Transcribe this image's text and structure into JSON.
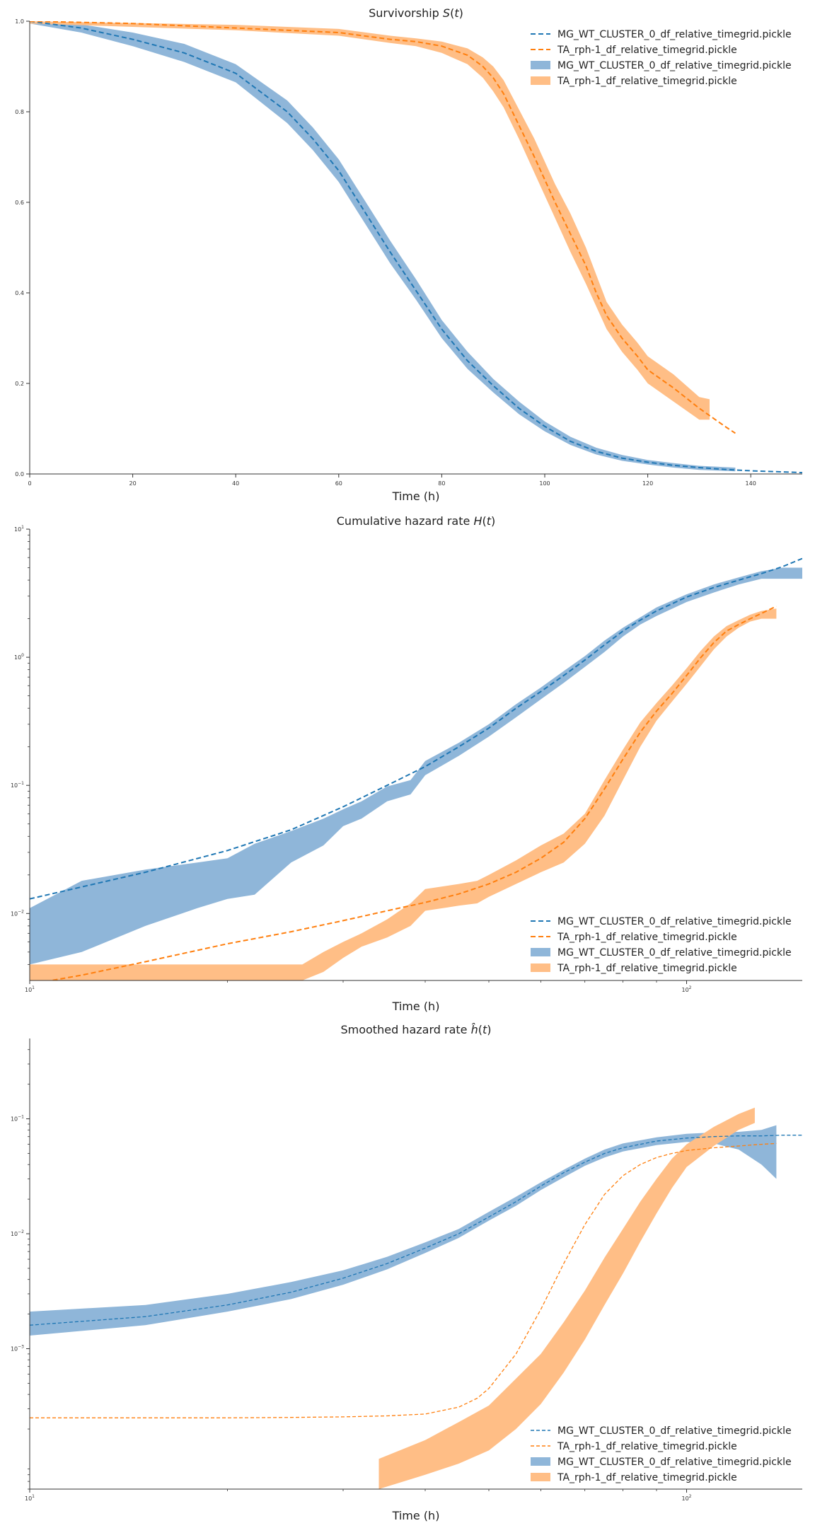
{
  "colors": {
    "blue": "#1f77b4",
    "orange": "#ff7f0e",
    "blue_fill": "#8fb6d9",
    "orange_fill": "#ffbe86"
  },
  "chart_data": [
    {
      "type": "line",
      "title": "Survivorship S(t)",
      "title_parts": [
        "Survivorship ",
        "S",
        "(",
        "t",
        ")"
      ],
      "xlabel": "Time (h)",
      "ylabel": "",
      "xlim": [
        0,
        150
      ],
      "ylim": [
        0,
        1
      ],
      "xscale": "linear",
      "yscale": "linear",
      "xticks": [
        0,
        20,
        40,
        60,
        80,
        100,
        120,
        140
      ],
      "xtick_labels": [
        "0",
        "20",
        "40",
        "60",
        "80",
        "100",
        "120",
        "140"
      ],
      "yticks": [
        0,
        0.2,
        0.4,
        0.6,
        0.8,
        1.0
      ],
      "ytick_labels": [
        "0.0",
        "0.2",
        "0.4",
        "0.6",
        "0.8",
        "1.0"
      ],
      "legend_position": "top-right",
      "legend": [
        {
          "label": "MG_WT_CLUSTER_0_df_relative_timegrid.pickle",
          "kind": "line",
          "color": "blue"
        },
        {
          "label": "TA_rph-1_df_relative_timegrid.pickle",
          "kind": "line",
          "color": "orange"
        },
        {
          "label": "MG_WT_CLUSTER_0_df_relative_timegrid.pickle",
          "kind": "band",
          "color": "blue"
        },
        {
          "label": "TA_rph-1_df_relative_timegrid.pickle",
          "kind": "band",
          "color": "orange"
        }
      ],
      "series": [
        {
          "color": "blue",
          "style": "dashed",
          "x": [
            0,
            10,
            20,
            30,
            40,
            50,
            55,
            60,
            65,
            70,
            75,
            80,
            85,
            90,
            95,
            100,
            105,
            110,
            115,
            120,
            125,
            130,
            135,
            140,
            145,
            150
          ],
          "y": [
            1.0,
            0.985,
            0.96,
            0.93,
            0.885,
            0.8,
            0.74,
            0.67,
            0.58,
            0.49,
            0.405,
            0.32,
            0.25,
            0.195,
            0.145,
            0.105,
            0.072,
            0.05,
            0.035,
            0.026,
            0.019,
            0.014,
            0.01,
            0.007,
            0.005,
            0.003
          ]
        },
        {
          "color": "orange",
          "style": "dashed",
          "x": [
            0,
            20,
            40,
            50,
            60,
            70,
            75,
            80,
            85,
            88,
            90,
            92,
            95,
            98,
            100,
            102,
            105,
            108,
            110,
            112,
            115,
            118,
            120,
            125,
            130,
            135,
            137
          ],
          "y": [
            1.0,
            0.995,
            0.985,
            0.98,
            0.975,
            0.96,
            0.955,
            0.945,
            0.925,
            0.9,
            0.875,
            0.84,
            0.77,
            0.7,
            0.65,
            0.6,
            0.53,
            0.46,
            0.4,
            0.35,
            0.3,
            0.26,
            0.23,
            0.19,
            0.145,
            0.105,
            0.09
          ]
        }
      ],
      "bands": [
        {
          "color": "blue",
          "x": [
            0,
            10,
            20,
            30,
            40,
            50,
            55,
            60,
            65,
            70,
            75,
            80,
            85,
            90,
            95,
            100,
            105,
            110,
            115,
            120,
            125,
            130,
            137
          ],
          "lower": [
            0.995,
            0.975,
            0.945,
            0.91,
            0.865,
            0.775,
            0.715,
            0.645,
            0.555,
            0.465,
            0.385,
            0.3,
            0.232,
            0.18,
            0.132,
            0.094,
            0.064,
            0.043,
            0.029,
            0.021,
            0.014,
            0.009,
            0.006
          ],
          "upper": [
            1.0,
            0.993,
            0.975,
            0.95,
            0.905,
            0.825,
            0.765,
            0.695,
            0.605,
            0.515,
            0.43,
            0.34,
            0.27,
            0.21,
            0.16,
            0.116,
            0.082,
            0.058,
            0.042,
            0.031,
            0.024,
            0.018,
            0.014
          ]
        },
        {
          "color": "orange",
          "x": [
            0,
            40,
            60,
            70,
            75,
            80,
            85,
            88,
            90,
            92,
            95,
            98,
            100,
            102,
            105,
            108,
            110,
            112,
            115,
            118,
            120,
            125,
            130,
            132
          ],
          "lower": [
            0.995,
            0.98,
            0.968,
            0.952,
            0.945,
            0.93,
            0.905,
            0.875,
            0.845,
            0.81,
            0.74,
            0.665,
            0.615,
            0.565,
            0.49,
            0.42,
            0.37,
            0.32,
            0.27,
            0.23,
            0.2,
            0.16,
            0.12,
            0.12
          ],
          "upper": [
            1.0,
            0.992,
            0.983,
            0.968,
            0.962,
            0.955,
            0.94,
            0.92,
            0.9,
            0.87,
            0.805,
            0.74,
            0.69,
            0.64,
            0.575,
            0.5,
            0.44,
            0.38,
            0.33,
            0.29,
            0.26,
            0.22,
            0.17,
            0.165
          ]
        }
      ]
    },
    {
      "type": "line",
      "title": "Cumulative hazard rate H(t)",
      "title_parts": [
        "Cumulative hazard rate ",
        "H",
        "(",
        "t",
        ")"
      ],
      "xlabel": "Time (h)",
      "ylabel": "",
      "xlim": [
        10,
        150
      ],
      "ylim": [
        0.003,
        10
      ],
      "xscale": "log",
      "yscale": "log",
      "xticks": [
        10,
        100
      ],
      "xtick_labels": [
        [
          "10",
          "1"
        ],
        [
          "10",
          "2"
        ]
      ],
      "yticks": [
        0.01,
        0.1,
        1,
        10
      ],
      "ytick_labels": [
        [
          "10",
          "−2"
        ],
        [
          "10",
          "−1"
        ],
        [
          "10",
          "0"
        ],
        [
          "10",
          "1"
        ]
      ],
      "legend_position": "lower-right",
      "legend": [
        {
          "label": "MG_WT_CLUSTER_0_df_relative_timegrid.pickle",
          "kind": "line",
          "color": "blue"
        },
        {
          "label": "TA_rph-1_df_relative_timegrid.pickle",
          "kind": "line",
          "color": "orange"
        },
        {
          "label": "MG_WT_CLUSTER_0_df_relative_timegrid.pickle",
          "kind": "band",
          "color": "blue"
        },
        {
          "label": "TA_rph-1_df_relative_timegrid.pickle",
          "kind": "band",
          "color": "orange"
        }
      ],
      "series": [
        {
          "color": "blue",
          "style": "dashed",
          "x": [
            10,
            15,
            20,
            25,
            30,
            35,
            40,
            45,
            50,
            55,
            60,
            65,
            70,
            75,
            80,
            85,
            90,
            100,
            110,
            120,
            130,
            140,
            150
          ],
          "y": [
            0.013,
            0.021,
            0.031,
            0.045,
            0.068,
            0.1,
            0.14,
            0.2,
            0.28,
            0.4,
            0.54,
            0.72,
            0.95,
            1.25,
            1.6,
            1.95,
            2.3,
            2.95,
            3.5,
            4.0,
            4.5,
            5.1,
            5.9
          ]
        },
        {
          "color": "orange",
          "style": "dashed",
          "x": [
            10,
            12,
            15,
            20,
            25,
            30,
            35,
            40,
            45,
            50,
            55,
            60,
            65,
            70,
            75,
            80,
            85,
            90,
            95,
            100,
            105,
            110,
            115,
            120,
            125,
            130,
            137
          ],
          "y": [
            0.0028,
            0.0033,
            0.0042,
            0.0058,
            0.0072,
            0.0088,
            0.0105,
            0.0122,
            0.0142,
            0.017,
            0.021,
            0.027,
            0.036,
            0.055,
            0.094,
            0.16,
            0.26,
            0.38,
            0.52,
            0.72,
            0.99,
            1.3,
            1.6,
            1.8,
            2.0,
            2.2,
            2.5
          ]
        }
      ],
      "bands": [
        {
          "color": "blue",
          "x": [
            10,
            12,
            15,
            18,
            20,
            22,
            25,
            28,
            30,
            32,
            35,
            38,
            40,
            45,
            50,
            55,
            60,
            65,
            70,
            75,
            80,
            85,
            90,
            100,
            110,
            120,
            130,
            140,
            150
          ],
          "lower": [
            0.004,
            0.005,
            0.008,
            0.011,
            0.013,
            0.014,
            0.025,
            0.034,
            0.048,
            0.055,
            0.075,
            0.085,
            0.12,
            0.17,
            0.24,
            0.34,
            0.47,
            0.63,
            0.84,
            1.1,
            1.45,
            1.8,
            2.1,
            2.7,
            3.2,
            3.7,
            4.1,
            4.1,
            4.1
          ],
          "upper": [
            0.011,
            0.018,
            0.022,
            0.025,
            0.027,
            0.035,
            0.044,
            0.055,
            0.065,
            0.075,
            0.098,
            0.11,
            0.155,
            0.215,
            0.3,
            0.43,
            0.58,
            0.78,
            1.02,
            1.35,
            1.7,
            2.05,
            2.45,
            3.1,
            3.7,
            4.2,
            4.7,
            5.0,
            5.0
          ]
        },
        {
          "color": "orange",
          "x": [
            10,
            15,
            20,
            24,
            26,
            28,
            30,
            32,
            35,
            38,
            40,
            45,
            48,
            50,
            55,
            60,
            65,
            70,
            75,
            80,
            85,
            90,
            95,
            100,
            105,
            110,
            115,
            120,
            125,
            130,
            137
          ],
          "lower": [
            0.003,
            0.003,
            0.003,
            0.003,
            0.003,
            0.0035,
            0.0045,
            0.0055,
            0.0065,
            0.008,
            0.0105,
            0.0115,
            0.012,
            0.0135,
            0.017,
            0.021,
            0.025,
            0.035,
            0.058,
            0.11,
            0.2,
            0.32,
            0.45,
            0.62,
            0.85,
            1.15,
            1.45,
            1.7,
            1.9,
            2.0,
            2.0
          ],
          "upper": [
            0.004,
            0.004,
            0.004,
            0.004,
            0.004,
            0.005,
            0.006,
            0.007,
            0.009,
            0.012,
            0.0155,
            0.017,
            0.018,
            0.02,
            0.026,
            0.034,
            0.042,
            0.06,
            0.11,
            0.19,
            0.31,
            0.44,
            0.6,
            0.82,
            1.12,
            1.45,
            1.75,
            1.95,
            2.15,
            2.3,
            2.4
          ]
        }
      ]
    },
    {
      "type": "line",
      "title": "Smoothed hazard rate ĥ(t)",
      "title_parts": [
        "Smoothed hazard rate ",
        "ĥ",
        "(",
        "t",
        ")"
      ],
      "xlabel": "Time (h)",
      "ylabel": "",
      "xlim": [
        10,
        150
      ],
      "ylim": [
        6e-05,
        0.5
      ],
      "xscale": "log",
      "yscale": "log",
      "xticks": [
        10,
        100
      ],
      "xtick_labels": [
        [
          "10",
          "1"
        ],
        [
          "10",
          "2"
        ]
      ],
      "yticks": [
        0.001,
        0.01,
        0.1
      ],
      "ytick_labels": [
        [
          "10",
          "−3"
        ],
        [
          "10",
          "−2"
        ],
        [
          "10",
          "−1"
        ]
      ],
      "legend_position": "lower-right",
      "legend": [
        {
          "label": "MG_WT_CLUSTER_0_df_relative_timegrid.pickle",
          "kind": "thin-line",
          "color": "blue"
        },
        {
          "label": "TA_rph-1_df_relative_timegrid.pickle",
          "kind": "thin-line",
          "color": "orange"
        },
        {
          "label": "MG_WT_CLUSTER_0_df_relative_timegrid.pickle",
          "kind": "band",
          "color": "blue"
        },
        {
          "label": "TA_rph-1_df_relative_timegrid.pickle",
          "kind": "band",
          "color": "orange"
        }
      ],
      "series": [
        {
          "color": "blue",
          "style": "dashed",
          "x": [
            10,
            15,
            20,
            25,
            30,
            35,
            40,
            45,
            50,
            55,
            60,
            65,
            70,
            75,
            80,
            90,
            100,
            110,
            120,
            130,
            140,
            150
          ],
          "y": [
            0.0016,
            0.0019,
            0.0024,
            0.0031,
            0.0041,
            0.0055,
            0.0075,
            0.01,
            0.014,
            0.019,
            0.026,
            0.034,
            0.042,
            0.05,
            0.056,
            0.064,
            0.068,
            0.07,
            0.071,
            0.071,
            0.072,
            0.072
          ]
        },
        {
          "color": "orange",
          "style": "dashed",
          "x": [
            10,
            15,
            20,
            25,
            30,
            35,
            40,
            45,
            48,
            50,
            55,
            60,
            65,
            70,
            75,
            80,
            85,
            90,
            95,
            100,
            110,
            120,
            130,
            137
          ],
          "y": [
            0.00025,
            0.00025,
            0.00025,
            0.000252,
            0.000255,
            0.00026,
            0.00027,
            0.00031,
            0.00037,
            0.00045,
            0.0009,
            0.0022,
            0.0055,
            0.012,
            0.022,
            0.032,
            0.04,
            0.046,
            0.05,
            0.053,
            0.056,
            0.058,
            0.06,
            0.061
          ]
        }
      ],
      "bands": [
        {
          "color": "blue",
          "x": [
            10,
            15,
            20,
            25,
            30,
            35,
            40,
            45,
            50,
            55,
            60,
            65,
            70,
            75,
            80,
            90,
            100,
            110,
            120,
            130,
            137
          ],
          "lower": [
            0.0013,
            0.0016,
            0.0021,
            0.0027,
            0.0036,
            0.0049,
            0.0068,
            0.0092,
            0.013,
            0.0175,
            0.024,
            0.031,
            0.039,
            0.046,
            0.052,
            0.059,
            0.063,
            0.061,
            0.054,
            0.04,
            0.03
          ],
          "upper": [
            0.0021,
            0.0024,
            0.003,
            0.0038,
            0.0048,
            0.0063,
            0.0084,
            0.011,
            0.0155,
            0.021,
            0.028,
            0.036,
            0.045,
            0.054,
            0.061,
            0.069,
            0.074,
            0.076,
            0.077,
            0.08,
            0.088
          ]
        },
        {
          "color": "orange",
          "x": [
            34,
            40,
            45,
            50,
            55,
            60,
            65,
            70,
            75,
            80,
            85,
            90,
            95,
            100,
            110,
            120,
            127
          ],
          "lower": [
            6e-05,
            8e-05,
            0.0001,
            0.00013,
            0.0002,
            0.00033,
            0.00062,
            0.0012,
            0.0024,
            0.0045,
            0.0085,
            0.015,
            0.025,
            0.038,
            0.058,
            0.08,
            0.092
          ],
          "upper": [
            0.00011,
            0.00016,
            0.00023,
            0.00032,
            0.00055,
            0.0009,
            0.0017,
            0.0032,
            0.0062,
            0.011,
            0.019,
            0.03,
            0.045,
            0.06,
            0.085,
            0.11,
            0.125
          ]
        }
      ]
    }
  ]
}
